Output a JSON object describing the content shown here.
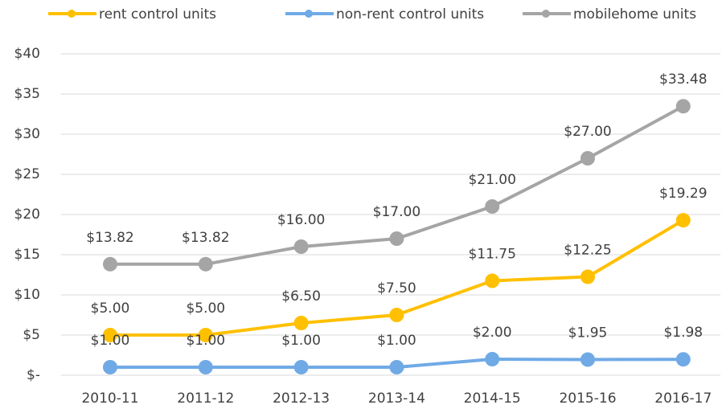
{
  "chart_data": {
    "type": "line",
    "categories": [
      "2010-11",
      "2011-12",
      "2012-13",
      "2013-14",
      "2014-15",
      "2015-16",
      "2016-17"
    ],
    "series": [
      {
        "name": "rent control units",
        "color": "#FFC000",
        "values": [
          5,
          5,
          6.5,
          7.5,
          11.75,
          12.25,
          19.29
        ],
        "value_labels": [
          "$5.00",
          "$5.00",
          "$6.50",
          "$7.50",
          "$11.75",
          "$12.25",
          "$19.29"
        ]
      },
      {
        "name": "non-rent control units",
        "color": "#70AAE6",
        "values": [
          1,
          1,
          1,
          1,
          2,
          1.95,
          1.98
        ],
        "value_labels": [
          "$1.00",
          "$1.00",
          "$1.00",
          "$1.00",
          "$2.00",
          "$1.95",
          "$1.98"
        ]
      },
      {
        "name": "mobilehome units",
        "color": "#A5A5A5",
        "values": [
          13.82,
          13.82,
          16,
          17,
          21,
          27,
          33.48
        ],
        "value_labels": [
          "$13.82",
          "$13.82",
          "$16.00",
          "$17.00",
          "$21.00",
          "$27.00",
          "$33.48"
        ]
      }
    ],
    "ylim": [
      0,
      40
    ],
    "yticks": [
      {
        "value": 0,
        "label": "$-"
      },
      {
        "value": 5,
        "label": "$5"
      },
      {
        "value": 10,
        "label": "$10"
      },
      {
        "value": 15,
        "label": "$15"
      },
      {
        "value": 20,
        "label": "$20"
      },
      {
        "value": 25,
        "label": "$25"
      },
      {
        "value": 30,
        "label": "$30"
      },
      {
        "value": 35,
        "label": "$35"
      },
      {
        "value": 40,
        "label": "$40"
      }
    ],
    "grid": true
  }
}
